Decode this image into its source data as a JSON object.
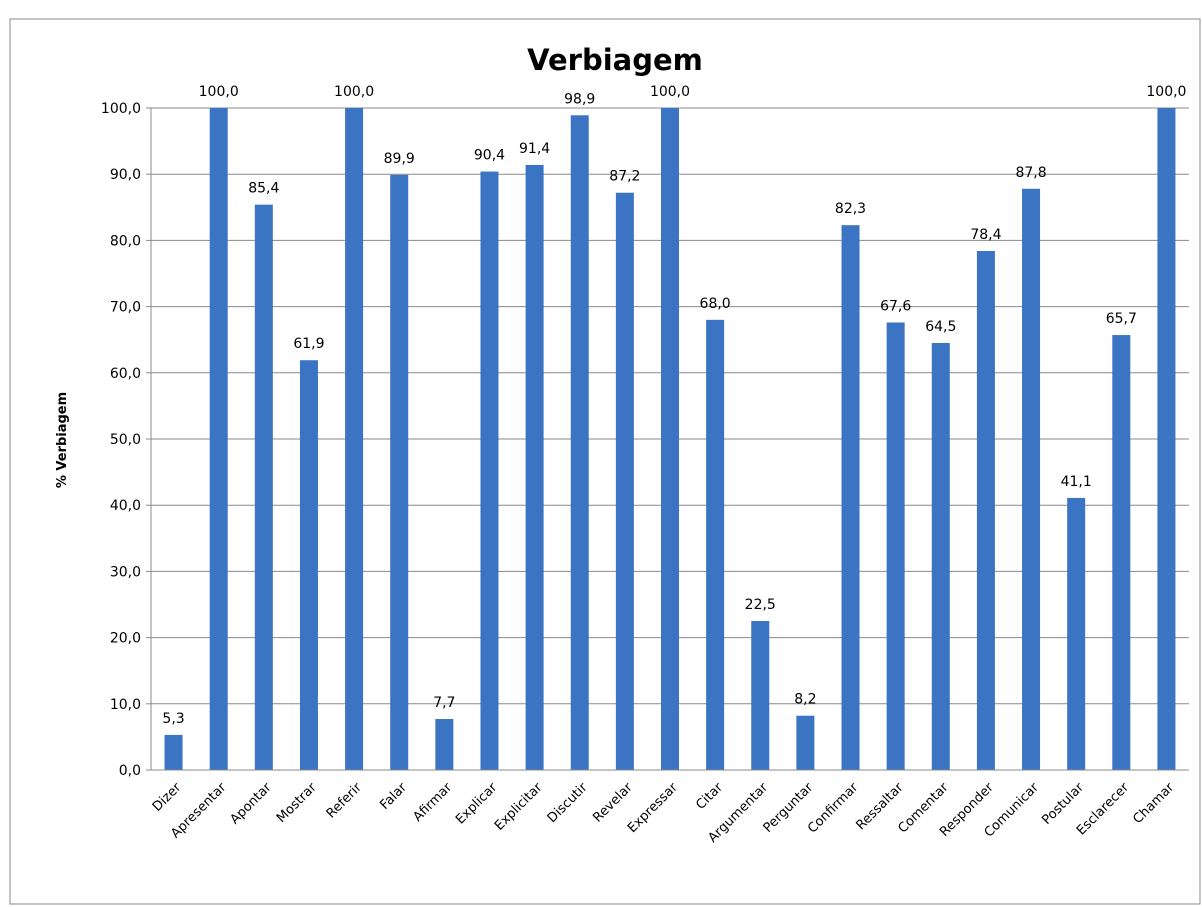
{
  "chart_data": {
    "type": "bar",
    "title": "Verbiagem",
    "y_label": "% Verbiagem",
    "categories": [
      "Dizer",
      "Apresentar",
      "Apontar",
      "Mostrar",
      "Referir",
      "Falar",
      "Afirmar",
      "Explicar",
      "Explicitar",
      "Discutir",
      "Revelar",
      "Expressar",
      "Citar",
      "Argumentar",
      "Perguntar",
      "Confirmar",
      "Ressaltar",
      "Comentar",
      "Responder",
      "Comunicar",
      "Postular",
      "Esclarecer",
      "Chamar"
    ],
    "values": [
      5.3,
      100,
      85.4,
      61.9,
      100,
      89.9,
      7.7,
      90.4,
      91.4,
      98.9,
      87.2,
      100,
      68,
      22.5,
      8.2,
      82.3,
      67.6,
      64.5,
      78.4,
      87.8,
      41.1,
      65.7,
      100
    ],
    "value_labels": [
      "5,3",
      "100,0",
      "85,4",
      "61,9",
      "100,0",
      "89,9",
      "7,7",
      "90,4",
      "91,4",
      "98,9",
      "87,2",
      "100,0",
      "68,0",
      "22,5",
      "8,2",
      "82,3",
      "67,6",
      "64,5",
      "78,4",
      "87,8",
      "41,1",
      "65,7",
      "100,0"
    ],
    "color": "#3a74c2",
    "ylim": [
      0,
      100
    ],
    "yticks": [
      {
        "value": 0,
        "label": "0,0"
      },
      {
        "value": 10,
        "label": "10,0"
      },
      {
        "value": 20,
        "label": "20,0"
      },
      {
        "value": 30,
        "label": "30,0"
      },
      {
        "value": 40,
        "label": "40,0"
      },
      {
        "value": 50,
        "label": "50,0"
      },
      {
        "value": 60,
        "label": "60,0"
      },
      {
        "value": 70,
        "label": "70,0"
      },
      {
        "value": 80,
        "label": "80,0"
      },
      {
        "value": 90,
        "label": "90,0"
      },
      {
        "value": 100,
        "label": "100,0"
      }
    ],
    "grid": true
  }
}
